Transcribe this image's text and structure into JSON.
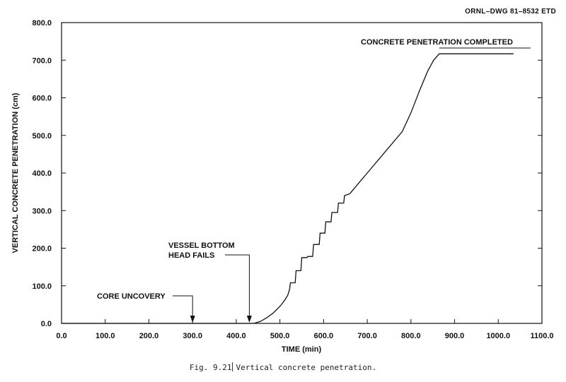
{
  "header": {
    "drawing_id": "ORNL–DWG 81–8532 ETD"
  },
  "caption": {
    "fig": "Fig. 9.21",
    "text": "Vertical concrete penetration."
  },
  "chart_data": {
    "type": "line",
    "title": "",
    "xlabel": "TIME (min)",
    "ylabel": "VERTICAL CONCRETE PENETRATION (cm)",
    "xlim": [
      0,
      1100
    ],
    "ylim": [
      0,
      800
    ],
    "xticks": [
      "0.0",
      "100.0",
      "200.0",
      "300.0",
      "400.0",
      "500.0",
      "600.0",
      "700.0",
      "800.0",
      "900.0",
      "1000.0",
      "1100.0"
    ],
    "yticks": [
      "0.0",
      "100.0",
      "200.0",
      "300.0",
      "400.0",
      "500.0",
      "600.0",
      "700.0",
      "800.0"
    ],
    "grid": false,
    "series": [
      {
        "x": [
          0,
          440,
          455,
          470,
          485,
          500,
          510,
          518,
          522,
          524,
          535,
          537,
          548,
          550,
          562,
          564,
          575,
          577,
          590,
          592,
          603,
          605,
          617,
          619,
          632,
          634,
          646,
          648,
          660,
          700,
          740,
          780,
          800,
          820,
          838,
          852,
          865,
          1035
        ],
        "y": [
          0,
          0,
          5,
          15,
          28,
          45,
          60,
          75,
          90,
          108,
          108,
          140,
          140,
          175,
          175,
          178,
          178,
          210,
          210,
          240,
          240,
          270,
          270,
          295,
          295,
          320,
          320,
          340,
          345,
          400,
          455,
          510,
          560,
          620,
          670,
          700,
          717,
          717
        ]
      }
    ],
    "annotations": [
      {
        "lines": [
          "CORE UNCOVERY"
        ],
        "x": 300
      },
      {
        "lines": [
          "VESSEL BOTTOM",
          "HEAD FAILS"
        ],
        "x": 430
      },
      {
        "lines": [
          "CONCRETE PENETRATION COMPLETED"
        ],
        "x": 865
      }
    ]
  }
}
